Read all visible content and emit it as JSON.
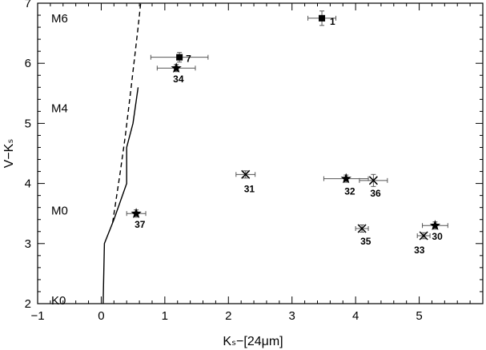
{
  "chart_data": {
    "type": "scatter",
    "xlabel": "Kₛ−[24μm]",
    "ylabel": "V−Kₛ",
    "xlim": [
      -1,
      6
    ],
    "ylim": [
      2,
      7
    ],
    "x_ticks": [
      -1,
      0,
      1,
      2,
      3,
      4,
      5
    ],
    "y_ticks": [
      2,
      3,
      4,
      5,
      6,
      7
    ],
    "grid": false,
    "spectral_labels": [
      {
        "text": "M6",
        "y": 6.75
      },
      {
        "text": "M4",
        "y": 5.25
      },
      {
        "text": "M0",
        "y": 3.55
      },
      {
        "text": "K0",
        "y": 2.05
      }
    ],
    "solid_line": [
      [
        0.03,
        1.9
      ],
      [
        0.05,
        3.0
      ],
      [
        0.2,
        3.4
      ],
      [
        0.4,
        4.0
      ],
      [
        0.4,
        4.6
      ],
      [
        0.5,
        5.0
      ],
      [
        0.58,
        5.6
      ]
    ],
    "dashed_line": [
      [
        0.18,
        3.35
      ],
      [
        0.3,
        4.2
      ],
      [
        0.38,
        4.8
      ],
      [
        0.47,
        5.6
      ],
      [
        0.58,
        6.6
      ],
      [
        0.62,
        7.0
      ]
    ],
    "points": [
      {
        "label": "1",
        "marker": "square",
        "x": 3.47,
        "y": 6.75,
        "xerr": 0.22,
        "yerr": 0.12
      },
      {
        "label": "7",
        "marker": "square",
        "x": 1.23,
        "y": 6.1,
        "xerr": 0.45,
        "yerr": 0.08
      },
      {
        "label": "34",
        "marker": "star",
        "x": 1.18,
        "y": 5.92,
        "xerr": 0.3,
        "yerr": 0.06
      },
      {
        "label": "31",
        "marker": "cross",
        "x": 2.27,
        "y": 4.15,
        "xerr": 0.15,
        "yerr": 0.06
      },
      {
        "label": "32",
        "marker": "star",
        "x": 3.85,
        "y": 4.08,
        "xerr": 0.35,
        "yerr": 0.06
      },
      {
        "label": "36",
        "marker": "cross",
        "x": 4.28,
        "y": 4.05,
        "xerr": 0.22,
        "yerr": 0.1
      },
      {
        "label": "37",
        "marker": "star",
        "x": 0.55,
        "y": 3.5,
        "xerr": 0.15,
        "yerr": 0.06
      },
      {
        "label": "35",
        "marker": "cross",
        "x": 4.1,
        "y": 3.25,
        "xerr": 0.1,
        "yerr": 0.06
      },
      {
        "label": "30",
        "marker": "star",
        "x": 5.25,
        "y": 3.3,
        "xerr": 0.2,
        "yerr": 0.06
      },
      {
        "label": "33",
        "marker": "cross",
        "x": 5.07,
        "y": 3.13,
        "xerr": 0.1,
        "yerr": 0.05
      }
    ]
  }
}
